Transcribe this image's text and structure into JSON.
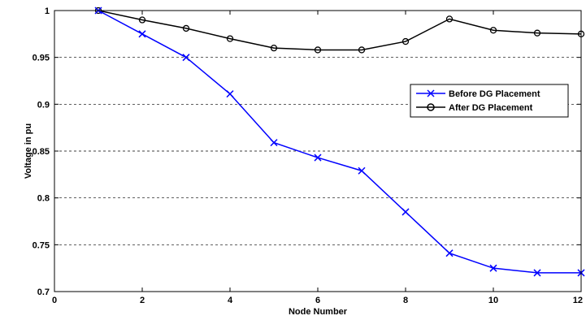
{
  "chart_data": {
    "type": "line",
    "xlabel": "Node Number",
    "ylabel": "Voltage in pu",
    "xlim": [
      0,
      12
    ],
    "ylim": [
      0.7,
      1
    ],
    "xticks": [
      "0",
      "2",
      "4",
      "6",
      "8",
      "10",
      "12"
    ],
    "yticks": [
      "0.7",
      "0.75",
      "0.8",
      "0.85",
      "0.9",
      "0.95",
      "1"
    ],
    "grid": "horizontal-dashed",
    "legend_position": "right",
    "x": [
      1,
      2,
      3,
      4,
      5,
      6,
      7,
      8,
      9,
      10,
      11,
      12
    ],
    "series": [
      {
        "name": "Before DG Placement",
        "color": "#0000ff",
        "marker": "x",
        "values": [
          1.0,
          0.975,
          0.95,
          0.911,
          0.859,
          0.843,
          0.829,
          0.785,
          0.741,
          0.725,
          0.72,
          0.72
        ]
      },
      {
        "name": "After DG Placement",
        "color": "#000000",
        "marker": "circle",
        "values": [
          1.0,
          0.99,
          0.981,
          0.97,
          0.96,
          0.958,
          0.958,
          0.967,
          0.991,
          0.979,
          0.976,
          0.975
        ]
      }
    ]
  }
}
